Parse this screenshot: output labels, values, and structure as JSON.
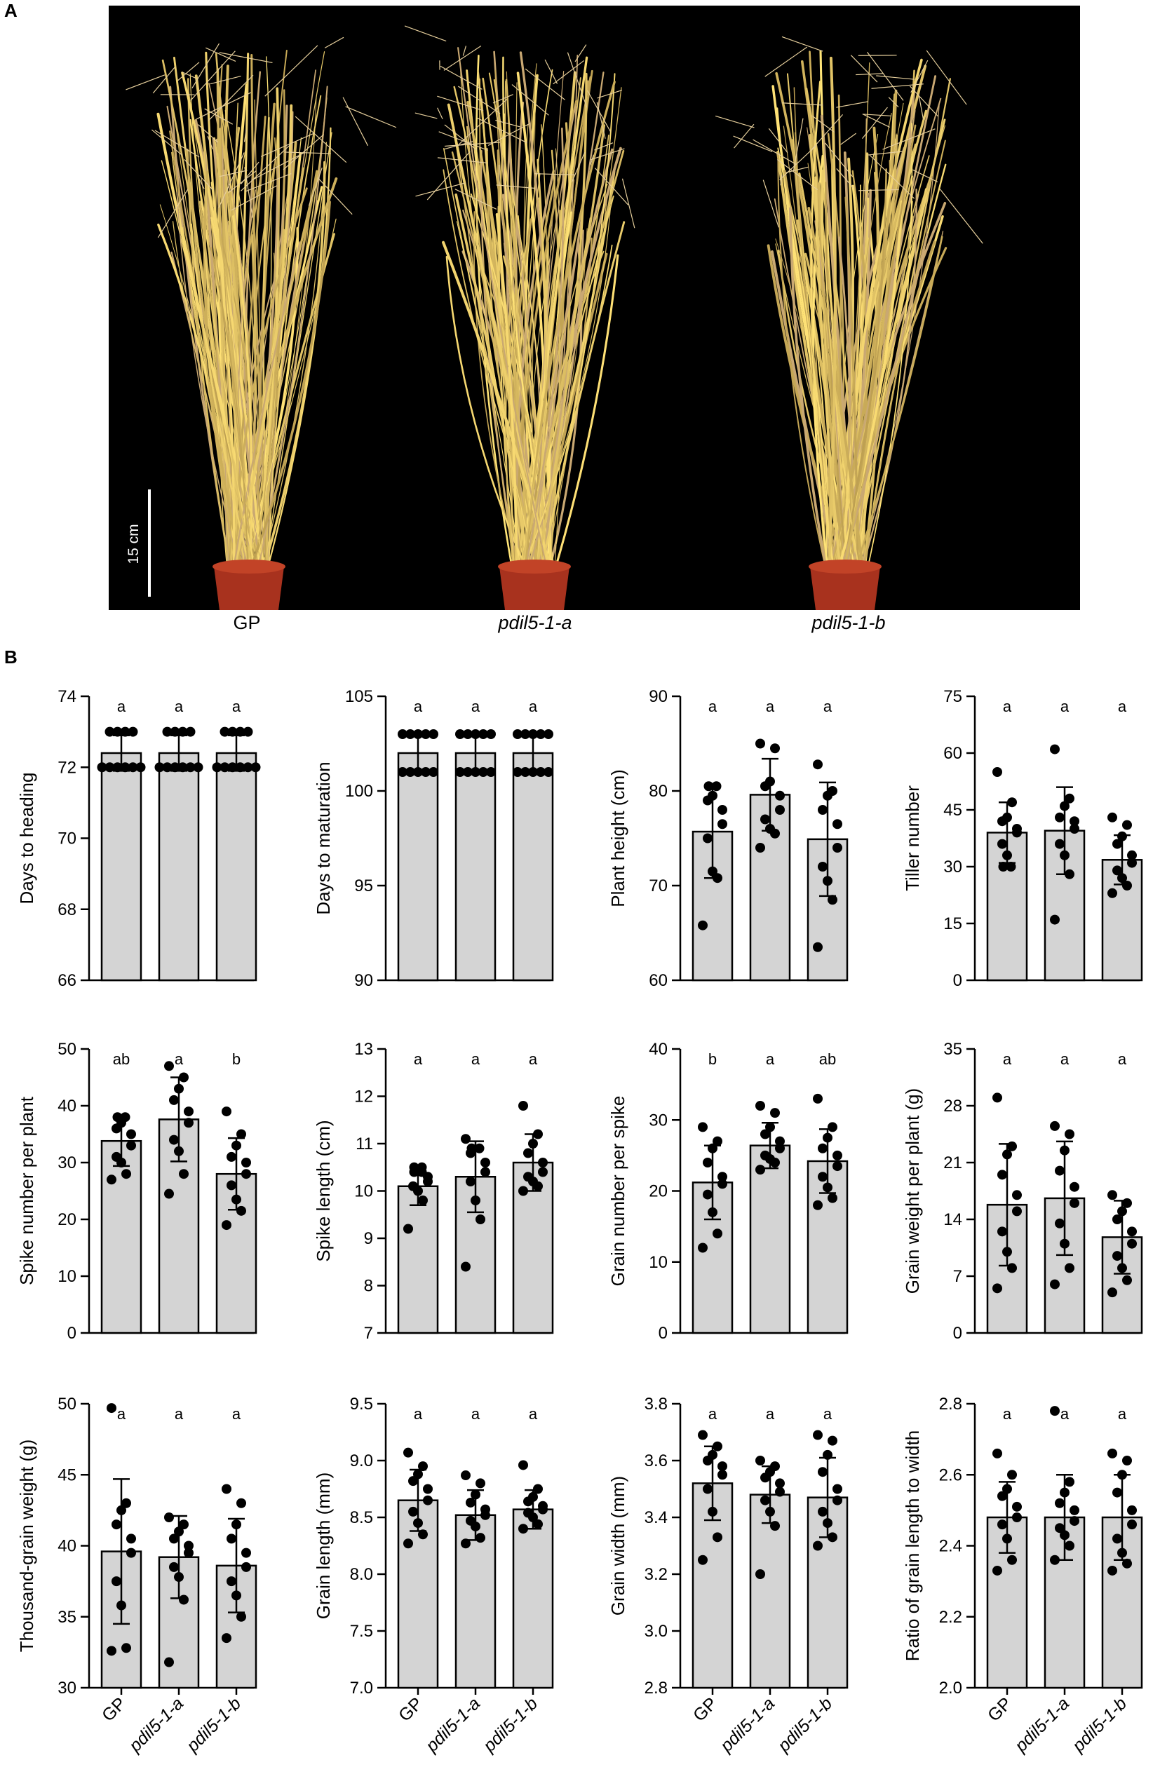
{
  "panel_a": {
    "label": "A",
    "scale_bar_label": "15 cm",
    "genotypes": [
      {
        "name": "GP",
        "italic": false
      },
      {
        "name": "pdil5-1-a",
        "italic": true
      },
      {
        "name": "pdil5-1-b",
        "italic": true
      }
    ]
  },
  "panel_b": {
    "label": "B"
  },
  "colors": {
    "bar_fill": "#d4d4d4",
    "bar_stroke": "#000000",
    "point": "#000000",
    "photo_bg": "#000000",
    "plant_straw": "#c9a872"
  },
  "chart_data": [
    {
      "type": "bar",
      "ylabel": "Days to heading",
      "categories": [
        "GP",
        "pdil5-1-a",
        "pdil5-1-b"
      ],
      "ylim": [
        66,
        74
      ],
      "yticks": [
        66,
        68,
        70,
        72,
        74
      ],
      "means": [
        72.4,
        72.4,
        72.4
      ],
      "sd": [
        0.5,
        0.5,
        0.5
      ],
      "letters": [
        "a",
        "a",
        "a"
      ],
      "points": [
        [
          72,
          72,
          72,
          72,
          72,
          72,
          73,
          73,
          73,
          73
        ],
        [
          72,
          72,
          72,
          72,
          72,
          72,
          73,
          73,
          73,
          73
        ],
        [
          72,
          72,
          72,
          72,
          72,
          72,
          73,
          73,
          73,
          73
        ]
      ]
    },
    {
      "type": "bar",
      "ylabel": "Days to maturation",
      "categories": [
        "GP",
        "pdil5-1-a",
        "pdil5-1-b"
      ],
      "ylim": [
        90,
        105
      ],
      "yticks": [
        90,
        95,
        100,
        105
      ],
      "means": [
        102,
        102,
        102
      ],
      "sd": [
        1,
        1,
        1
      ],
      "letters": [
        "a",
        "a",
        "a"
      ],
      "points": [
        [
          101,
          101,
          101,
          101,
          101,
          103,
          103,
          103,
          103,
          103
        ],
        [
          101,
          101,
          101,
          101,
          101,
          103,
          103,
          103,
          103,
          103
        ],
        [
          101,
          101,
          101,
          101,
          101,
          103,
          103,
          103,
          103,
          103
        ]
      ]
    },
    {
      "type": "bar",
      "ylabel": "Plant height (cm)",
      "categories": [
        "GP",
        "pdil5-1-a",
        "pdil5-1-b"
      ],
      "ylim": [
        60,
        90
      ],
      "yticks": [
        60,
        70,
        80,
        90
      ],
      "means": [
        75.7,
        79.6,
        74.9
      ],
      "sd": [
        4.9,
        3.8,
        6.0
      ],
      "letters": [
        "a",
        "a",
        "a"
      ],
      "points": [
        [
          65.8,
          70.8,
          71.5,
          75,
          76.5,
          78,
          79,
          80.5,
          80.5,
          79.5
        ],
        [
          74,
          75.5,
          76,
          77,
          78,
          79.5,
          80.5,
          81,
          84.5,
          85
        ],
        [
          63.5,
          68.5,
          70.5,
          72,
          74,
          76.5,
          78,
          79.5,
          80,
          82.8
        ]
      ]
    },
    {
      "type": "bar",
      "ylabel": "Tiller number",
      "categories": [
        "GP",
        "pdil5-1-a",
        "pdil5-1-b"
      ],
      "ylim": [
        0,
        75
      ],
      "yticks": [
        0,
        15,
        30,
        45,
        60,
        75
      ],
      "means": [
        39,
        39.5,
        31.8
      ],
      "sd": [
        8,
        11.5,
        6.5
      ],
      "letters": [
        "a",
        "a",
        "a"
      ],
      "points": [
        [
          30,
          30,
          33,
          36,
          39,
          40,
          42,
          43,
          47,
          55
        ],
        [
          16,
          28,
          33,
          36,
          40,
          42,
          43,
          46,
          48,
          61
        ],
        [
          23,
          25,
          27,
          29,
          31,
          33,
          36,
          38,
          41,
          43
        ]
      ]
    },
    {
      "type": "bar",
      "ylabel": "Spike number per plant",
      "categories": [
        "GP",
        "pdil5-1-a",
        "pdil5-1-b"
      ],
      "ylim": [
        0,
        50
      ],
      "yticks": [
        0,
        10,
        20,
        30,
        40,
        50
      ],
      "means": [
        33.8,
        37.6,
        28
      ],
      "sd": [
        4.4,
        7.4,
        6.3
      ],
      "letters": [
        "ab",
        "a",
        "b"
      ],
      "points": [
        [
          27,
          28,
          30,
          31,
          33,
          35,
          36,
          37,
          38,
          38
        ],
        [
          24.5,
          28,
          32,
          34,
          37,
          39,
          41,
          43,
          45,
          47
        ],
        [
          19,
          21.5,
          23.5,
          26,
          28,
          30,
          31,
          33,
          35,
          39
        ]
      ]
    },
    {
      "type": "bar",
      "ylabel": "Spike length (cm)",
      "categories": [
        "GP",
        "pdil5-1-a",
        "pdil5-1-b"
      ],
      "ylim": [
        7,
        13
      ],
      "yticks": [
        7,
        8,
        9,
        10,
        11,
        12,
        13
      ],
      "means": [
        10.1,
        10.3,
        10.6
      ],
      "sd": [
        0.4,
        0.75,
        0.6
      ],
      "letters": [
        "a",
        "a",
        "a"
      ],
      "points": [
        [
          9.2,
          9.8,
          10,
          10.1,
          10.2,
          10.3,
          10.4,
          10.4,
          10.5,
          10.5
        ],
        [
          8.4,
          9.4,
          9.8,
          10.2,
          10.4,
          10.6,
          10.8,
          10.9,
          10.9,
          11.1
        ],
        [
          10,
          10.1,
          10.2,
          10.3,
          10.4,
          10.6,
          10.8,
          11,
          11.2,
          11.8
        ]
      ]
    },
    {
      "type": "bar",
      "ylabel": "Grain number per spike",
      "categories": [
        "GP",
        "pdil5-1-a",
        "pdil5-1-b"
      ],
      "ylim": [
        0,
        40
      ],
      "yticks": [
        0,
        10,
        20,
        30,
        40
      ],
      "means": [
        21.2,
        26.4,
        24.2
      ],
      "sd": [
        5.2,
        3.2,
        4.5
      ],
      "letters": [
        "b",
        "a",
        "ab"
      ],
      "points": [
        [
          12,
          14,
          17,
          19.5,
          21,
          22,
          24,
          26,
          27,
          29
        ],
        [
          23,
          24,
          24.5,
          25,
          26,
          27,
          28,
          29,
          31,
          32
        ],
        [
          18,
          19,
          20.5,
          22,
          23.5,
          25,
          26,
          27.5,
          29,
          33
        ]
      ]
    },
    {
      "type": "bar",
      "ylabel": "Grain weight per plant (g)",
      "categories": [
        "GP",
        "pdil5-1-a",
        "pdil5-1-b"
      ],
      "ylim": [
        0,
        35
      ],
      "yticks": [
        0,
        7,
        14,
        21,
        28,
        35
      ],
      "means": [
        15.8,
        16.6,
        11.8
      ],
      "sd": [
        7.5,
        7,
        4.5
      ],
      "letters": [
        "a",
        "a",
        "a"
      ],
      "points": [
        [
          5.5,
          8,
          10,
          12.5,
          15,
          17,
          19.5,
          22,
          23,
          29
        ],
        [
          6,
          8,
          11,
          13.5,
          16,
          18,
          20,
          22.5,
          24.5,
          25.5
        ],
        [
          5,
          6.5,
          8,
          9.5,
          11,
          12.5,
          14,
          15,
          16,
          17
        ]
      ]
    },
    {
      "type": "bar",
      "ylabel": "Thousand-grain weight (g)",
      "categories": [
        "GP",
        "pdil5-1-a",
        "pdil5-1-b"
      ],
      "ylim": [
        30,
        50
      ],
      "yticks": [
        30,
        35,
        40,
        45,
        50
      ],
      "means": [
        39.6,
        39.2,
        38.6
      ],
      "sd": [
        5.1,
        2.9,
        3.3
      ],
      "letters": [
        "a",
        "a",
        "a"
      ],
      "points": [
        [
          32.6,
          32.8,
          35.8,
          37.5,
          39.5,
          40.5,
          41.5,
          42.5,
          43,
          49.7
        ],
        [
          31.8,
          36.2,
          37.8,
          38.5,
          39.5,
          40,
          40.5,
          41,
          41.5,
          42
        ],
        [
          33.5,
          35,
          36.5,
          37.5,
          38.5,
          39.5,
          40.5,
          41.5,
          43,
          44
        ]
      ]
    },
    {
      "type": "bar",
      "ylabel": "Grain length (mm)",
      "categories": [
        "GP",
        "pdil5-1-a",
        "pdil5-1-b"
      ],
      "ylim": [
        7,
        9.5
      ],
      "yticks": [
        7.0,
        7.5,
        8.0,
        8.5,
        9.0,
        9.5
      ],
      "means": [
        8.65,
        8.52,
        8.57
      ],
      "sd": [
        0.27,
        0.22,
        0.17
      ],
      "letters": [
        "a",
        "a",
        "a"
      ],
      "points": [
        [
          8.27,
          8.35,
          8.45,
          8.55,
          8.65,
          8.75,
          8.82,
          8.88,
          8.95,
          9.07
        ],
        [
          8.27,
          8.32,
          8.42,
          8.47,
          8.52,
          8.57,
          8.63,
          8.7,
          8.8,
          8.87
        ],
        [
          8.4,
          8.44,
          8.5,
          8.54,
          8.57,
          8.6,
          8.64,
          8.68,
          8.75,
          8.96
        ]
      ]
    },
    {
      "type": "bar",
      "ylabel": "Grain width (mm)",
      "categories": [
        "GP",
        "pdil5-1-a",
        "pdil5-1-b"
      ],
      "ylim": [
        2.8,
        3.8
      ],
      "yticks": [
        2.8,
        3.0,
        3.2,
        3.4,
        3.6,
        3.8
      ],
      "means": [
        3.52,
        3.48,
        3.47
      ],
      "sd": [
        0.13,
        0.1,
        0.14
      ],
      "letters": [
        "a",
        "a",
        "a"
      ],
      "points": [
        [
          3.25,
          3.33,
          3.42,
          3.5,
          3.55,
          3.58,
          3.6,
          3.62,
          3.65,
          3.69
        ],
        [
          3.2,
          3.37,
          3.42,
          3.46,
          3.49,
          3.52,
          3.54,
          3.56,
          3.58,
          3.6
        ],
        [
          3.3,
          3.33,
          3.38,
          3.42,
          3.46,
          3.5,
          3.56,
          3.62,
          3.67,
          3.69
        ]
      ]
    },
    {
      "type": "bar",
      "ylabel": "Ratio of grain length to width",
      "categories": [
        "GP",
        "pdil5-1-a",
        "pdil5-1-b"
      ],
      "ylim": [
        2.0,
        2.8
      ],
      "yticks": [
        2.0,
        2.2,
        2.4,
        2.6,
        2.8
      ],
      "means": [
        2.48,
        2.48,
        2.48
      ],
      "sd": [
        0.1,
        0.12,
        0.12
      ],
      "letters": [
        "a",
        "a",
        "a"
      ],
      "points": [
        [
          2.33,
          2.36,
          2.42,
          2.46,
          2.48,
          2.51,
          2.54,
          2.56,
          2.6,
          2.66
        ],
        [
          2.36,
          2.4,
          2.43,
          2.45,
          2.47,
          2.5,
          2.52,
          2.55,
          2.58,
          2.78
        ],
        [
          2.33,
          2.35,
          2.38,
          2.42,
          2.46,
          2.5,
          2.55,
          2.6,
          2.64,
          2.66
        ]
      ]
    }
  ]
}
